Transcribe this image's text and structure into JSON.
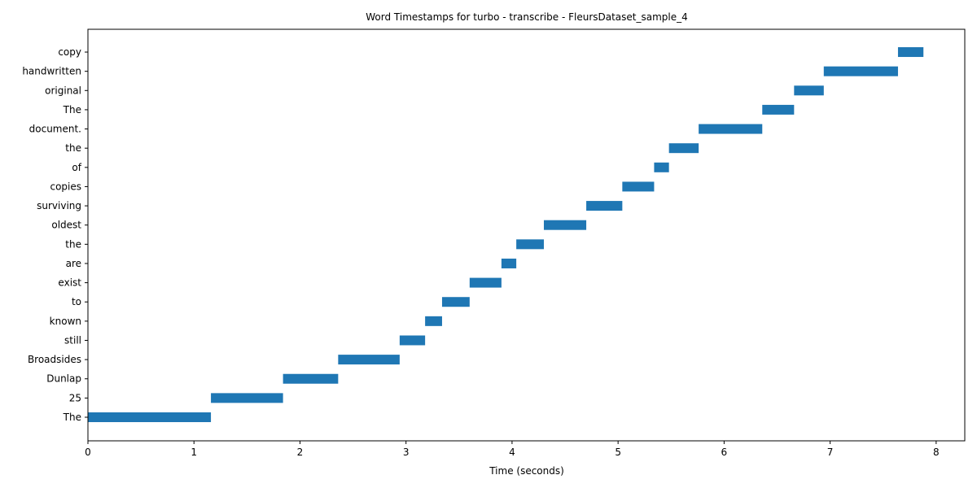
{
  "chart_data": {
    "type": "bar",
    "orientation": "horizontal",
    "title": "Word Timestamps for turbo - transcribe - FleursDataset_sample_4",
    "xlabel": "Time (seconds)",
    "ylabel": "",
    "xlim": [
      0,
      8.27
    ],
    "xticks": [
      "0",
      "1",
      "2",
      "3",
      "4",
      "5",
      "6",
      "7",
      "8"
    ],
    "grid": false,
    "bar_color": "#1f77b4",
    "words": [
      {
        "label": " The",
        "start": 0.0,
        "end": 1.16
      },
      {
        "label": " 25",
        "start": 1.16,
        "end": 1.84
      },
      {
        "label": " Dunlap",
        "start": 1.84,
        "end": 2.36
      },
      {
        "label": " Broadsides",
        "start": 2.36,
        "end": 2.94
      },
      {
        "label": " still",
        "start": 2.94,
        "end": 3.18
      },
      {
        "label": " known",
        "start": 3.18,
        "end": 3.34
      },
      {
        "label": " to",
        "start": 3.34,
        "end": 3.6
      },
      {
        "label": " exist",
        "start": 3.6,
        "end": 3.9
      },
      {
        "label": " are",
        "start": 3.9,
        "end": 4.04
      },
      {
        "label": " the",
        "start": 4.04,
        "end": 4.3
      },
      {
        "label": " oldest",
        "start": 4.3,
        "end": 4.7
      },
      {
        "label": " surviving",
        "start": 4.7,
        "end": 5.04
      },
      {
        "label": " copies",
        "start": 5.04,
        "end": 5.34
      },
      {
        "label": " of",
        "start": 5.34,
        "end": 5.48
      },
      {
        "label": " the",
        "start": 5.48,
        "end": 5.76
      },
      {
        "label": " document.",
        "start": 5.76,
        "end": 6.36
      },
      {
        "label": " The",
        "start": 6.36,
        "end": 6.66
      },
      {
        "label": " original",
        "start": 6.66,
        "end": 6.94
      },
      {
        "label": " handwritten",
        "start": 6.94,
        "end": 7.64
      },
      {
        "label": " copy",
        "start": 7.64,
        "end": 7.88
      }
    ]
  }
}
